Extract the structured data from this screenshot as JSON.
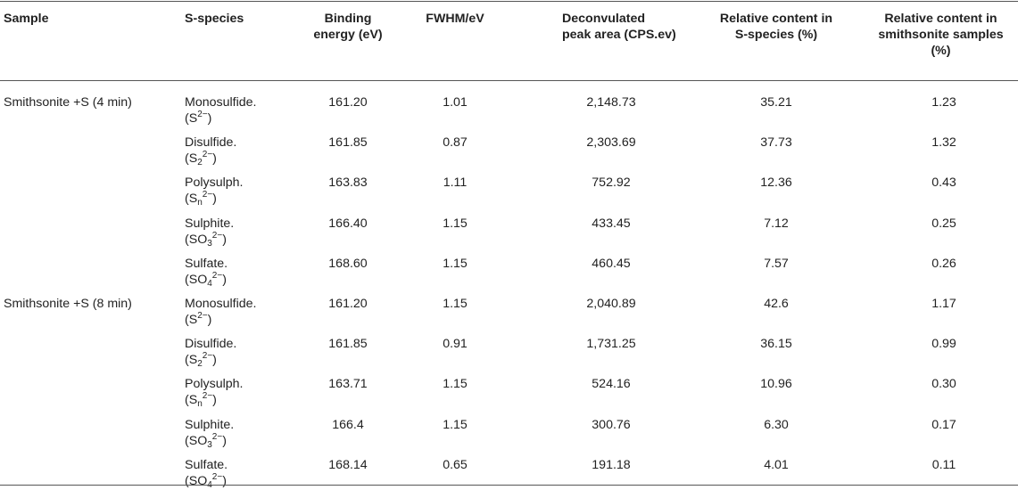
{
  "headers": {
    "sample": "Sample",
    "species": "S-species",
    "binding": [
      "Binding",
      "energy (eV)"
    ],
    "fwhm": "FWHM/eV",
    "area": [
      "Deconvulated",
      "peak area (CPS.ev)"
    ],
    "rel_species": [
      "Relative content in",
      "S-species (%)"
    ],
    "rel_samples": [
      "Relative content in",
      "smithsonite samples",
      "(%)"
    ]
  },
  "groups": [
    {
      "sample": "Smithsonite +S (4 min)",
      "rows": [
        {
          "name": "Monosulfide.",
          "base": "S",
          "sub": "",
          "sup": "2−",
          "be": "161.20",
          "fwhm": "1.01",
          "area": "2,148.73",
          "rel_species": "35.21",
          "rel_samples": "1.23"
        },
        {
          "name": "Disulfide.",
          "base": "S",
          "sub": "2",
          "sup": "2−",
          "be": "161.85",
          "fwhm": "0.87",
          "area": "2,303.69",
          "rel_species": "37.73",
          "rel_samples": "1.32"
        },
        {
          "name": "Polysulph.",
          "base": "S",
          "sub": "n",
          "sup": "2−",
          "be": "163.83",
          "fwhm": "1.11",
          "area": "752.92",
          "rel_species": "12.36",
          "rel_samples": "0.43"
        },
        {
          "name": "Sulphite.",
          "base": "SO",
          "sub": "3",
          "sup": "2−",
          "be": "166.40",
          "fwhm": "1.15",
          "area": "433.45",
          "rel_species": "7.12",
          "rel_samples": "0.25"
        },
        {
          "name": "Sulfate.",
          "base": "SO",
          "sub": "4",
          "sup": "2−",
          "be": "168.60",
          "fwhm": "1.15",
          "area": "460.45",
          "rel_species": "7.57",
          "rel_samples": "0.26"
        }
      ]
    },
    {
      "sample": "Smithsonite +S (8 min)",
      "rows": [
        {
          "name": "Monosulfide.",
          "base": "S",
          "sub": "",
          "sup": "2−",
          "be": "161.20",
          "fwhm": "1.15",
          "area": "2,040.89",
          "rel_species": "42.6",
          "rel_samples": "1.17"
        },
        {
          "name": "Disulfide.",
          "base": "S",
          "sub": "2",
          "sup": "2−",
          "be": "161.85",
          "fwhm": "0.91",
          "area": "1,731.25",
          "rel_species": "36.15",
          "rel_samples": "0.99"
        },
        {
          "name": "Polysulph.",
          "base": "S",
          "sub": "n",
          "sup": "2−",
          "be": "163.71",
          "fwhm": "1.15",
          "area": "524.16",
          "rel_species": "10.96",
          "rel_samples": "0.30"
        },
        {
          "name": "Sulphite.",
          "base": "SO",
          "sub": "3",
          "sup": "2−",
          "be": "166.4",
          "fwhm": "1.15",
          "area": "300.76",
          "rel_species": "6.30",
          "rel_samples": "0.17"
        },
        {
          "name": "Sulfate.",
          "base": "SO",
          "sub": "4",
          "sup": "2−",
          "be": "168.14",
          "fwhm": "0.65",
          "area": "191.18",
          "rel_species": "4.01",
          "rel_samples": "0.11"
        }
      ]
    }
  ]
}
